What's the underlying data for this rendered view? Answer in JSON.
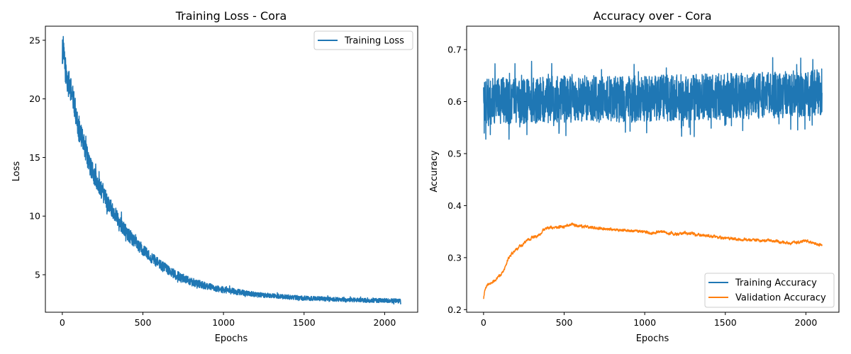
{
  "chart_data": [
    {
      "type": "line",
      "title": "Training Loss - Cora",
      "xlabel": "Epochs",
      "ylabel": "Loss",
      "xlim": [
        -105,
        2205
      ],
      "ylim": [
        1.8,
        26.2
      ],
      "xticks": [
        0,
        500,
        1000,
        1500,
        2000
      ],
      "yticks": [
        5,
        10,
        15,
        20,
        25
      ],
      "grid": false,
      "legend_position": "top-right",
      "series": [
        {
          "name": "Training Loss",
          "color": "#1f77b4",
          "x": [
            0,
            5,
            10,
            20,
            30,
            50,
            75,
            100,
            125,
            150,
            175,
            200,
            250,
            300,
            350,
            400,
            450,
            500,
            600,
            700,
            800,
            900,
            1000,
            1100,
            1200,
            1300,
            1400,
            1500,
            1600,
            1700,
            1800,
            1900,
            2000,
            2100
          ],
          "y": [
            24.0,
            24.3,
            23.5,
            22.5,
            21.5,
            21.0,
            19.5,
            17.5,
            16.5,
            15.3,
            14.2,
            13.4,
            12.0,
            10.8,
            9.7,
            8.6,
            7.8,
            7.1,
            5.9,
            5.0,
            4.4,
            4.0,
            3.7,
            3.5,
            3.3,
            3.2,
            3.1,
            3.0,
            2.95,
            2.9,
            2.85,
            2.8,
            2.8,
            2.75
          ],
          "noise_amplitude": [
            1.2,
            1.2,
            1.2,
            1.2,
            1.2,
            1.1,
            1.0,
            1.0,
            0.95,
            0.9,
            0.85,
            0.8,
            0.75,
            0.7,
            0.65,
            0.6,
            0.55,
            0.5,
            0.45,
            0.4,
            0.35,
            0.3,
            0.28,
            0.25,
            0.22,
            0.2,
            0.2,
            0.2,
            0.18,
            0.18,
            0.18,
            0.18,
            0.18,
            0.18
          ]
        }
      ]
    },
    {
      "type": "line",
      "title": "Accuracy over - Cora",
      "xlabel": "Epochs",
      "ylabel": "Accuracy",
      "xlim": [
        -105,
        2205
      ],
      "ylim": [
        0.195,
        0.745
      ],
      "xticks": [
        0,
        500,
        1000,
        1500,
        2000
      ],
      "yticks": [
        0.2,
        0.3,
        0.4,
        0.5,
        0.6,
        0.7
      ],
      "grid": false,
      "legend_position": "bottom-right",
      "series": [
        {
          "name": "Training Accuracy",
          "color": "#1f77b4",
          "x": [
            0,
            500,
            1000,
            1500,
            2000,
            2100
          ],
          "y": [
            0.6,
            0.605,
            0.605,
            0.61,
            0.615,
            0.62
          ],
          "noise_amplitude": [
            0.045,
            0.045,
            0.045,
            0.045,
            0.045,
            0.045
          ]
        },
        {
          "name": "Validation Accuracy",
          "color": "#ff7f0e",
          "x": [
            0,
            10,
            25,
            50,
            75,
            100,
            125,
            150,
            175,
            200,
            250,
            300,
            350,
            375,
            400,
            450,
            500,
            550,
            600,
            700,
            800,
            900,
            1000,
            1050,
            1100,
            1200,
            1250,
            1300,
            1400,
            1500,
            1600,
            1700,
            1800,
            1900,
            2000,
            2050,
            2100
          ],
          "y": [
            0.222,
            0.24,
            0.248,
            0.252,
            0.258,
            0.265,
            0.275,
            0.295,
            0.308,
            0.315,
            0.327,
            0.338,
            0.345,
            0.355,
            0.357,
            0.358,
            0.36,
            0.364,
            0.36,
            0.357,
            0.354,
            0.352,
            0.35,
            0.347,
            0.35,
            0.345,
            0.348,
            0.345,
            0.342,
            0.337,
            0.335,
            0.333,
            0.332,
            0.328,
            0.332,
            0.327,
            0.324
          ],
          "noise_amplitude": [
            0.002,
            0.002,
            0.002,
            0.002,
            0.002,
            0.002,
            0.002,
            0.002,
            0.002,
            0.002,
            0.002,
            0.002,
            0.002,
            0.002,
            0.002,
            0.002,
            0.002,
            0.002,
            0.002,
            0.002,
            0.002,
            0.002,
            0.002,
            0.002,
            0.002,
            0.002,
            0.002,
            0.002,
            0.002,
            0.002,
            0.002,
            0.002,
            0.002,
            0.002,
            0.002,
            0.002,
            0.002
          ]
        }
      ]
    }
  ]
}
